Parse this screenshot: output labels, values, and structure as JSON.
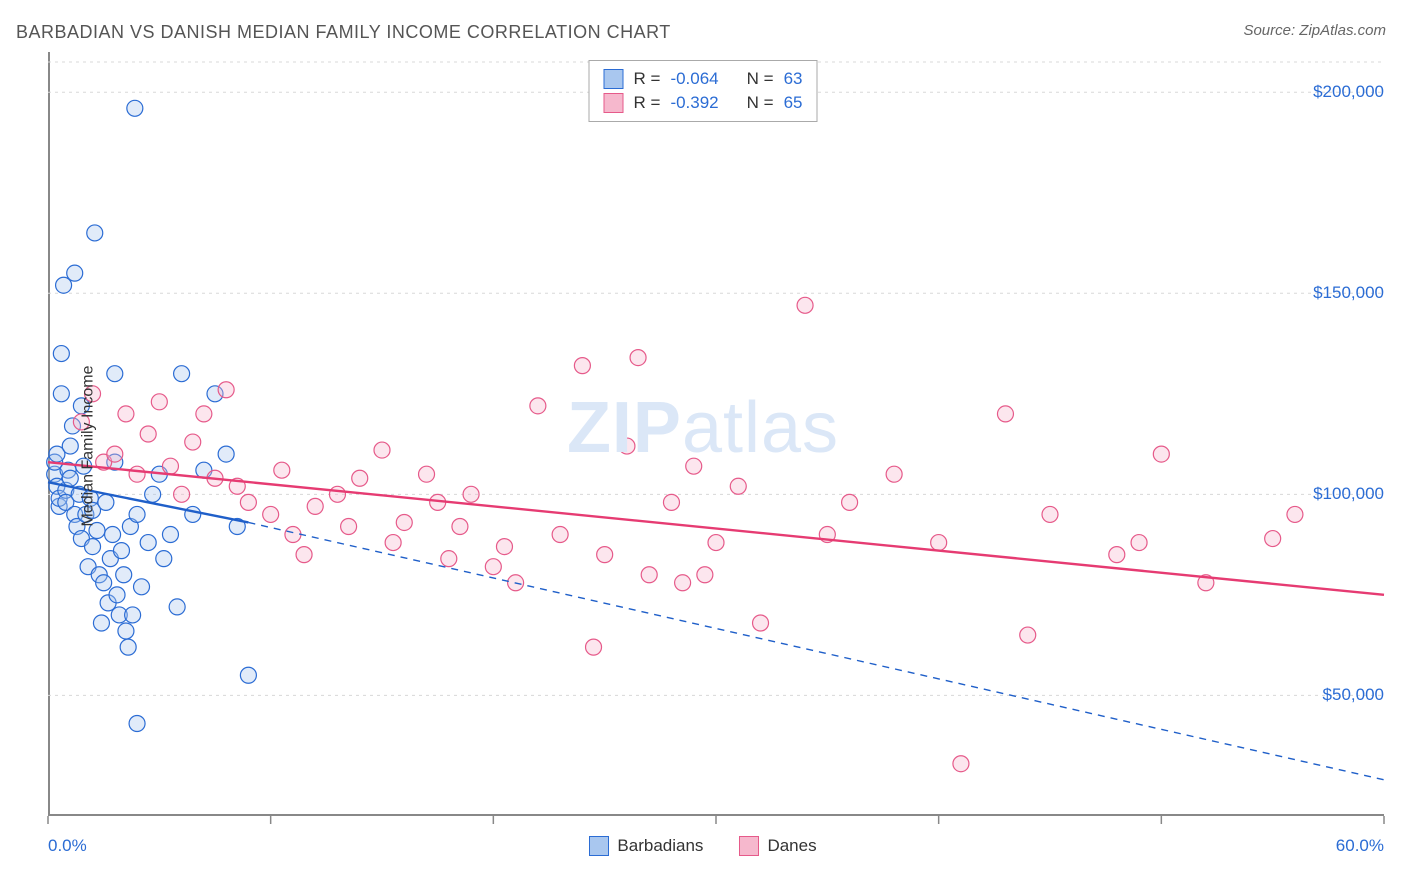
{
  "title": "BARBADIAN VS DANISH MEDIAN FAMILY INCOME CORRELATION CHART",
  "source": "Source: ZipAtlas.com",
  "watermark_bold": "ZIP",
  "watermark_rest": "atlas",
  "chart": {
    "type": "scatter",
    "ylabel": "Median Family Income",
    "xlim": [
      0,
      60
    ],
    "ylim": [
      20000,
      210000
    ],
    "xtick_positions": [
      0,
      10,
      20,
      30,
      40,
      50,
      60
    ],
    "xtick_labels_shown": {
      "first": "0.0%",
      "last": "60.0%"
    },
    "ytick_positions": [
      50000,
      100000,
      150000,
      200000
    ],
    "ytick_labels": [
      "$50,000",
      "$100,000",
      "$150,000",
      "$200,000"
    ],
    "grid_color": "#d8d8d8",
    "grid_dash": "3,4",
    "axis_color": "#888888",
    "background_color": "#ffffff",
    "tick_label_color": "#2b6cd4",
    "marker_radius": 8,
    "marker_stroke_width": 1.2,
    "marker_fill_opacity": 0.35,
    "trend_line_width": 2.4,
    "series": [
      {
        "name": "Barbadians",
        "color_stroke": "#2b6cd4",
        "color_fill": "#a9c7ef",
        "trend_color": "#1f5fc9",
        "trend_start": [
          0,
          103000
        ],
        "trend_end_solid": [
          9,
          93000
        ],
        "trend_end_dashed": [
          60,
          29000
        ],
        "R": "-0.064",
        "N": "63",
        "points": [
          [
            0.3,
            105000
          ],
          [
            0.3,
            108000
          ],
          [
            0.4,
            102000
          ],
          [
            0.4,
            110000
          ],
          [
            0.5,
            97000
          ],
          [
            0.5,
            99000
          ],
          [
            0.6,
            135000
          ],
          [
            0.6,
            125000
          ],
          [
            0.7,
            152000
          ],
          [
            0.8,
            101000
          ],
          [
            0.8,
            98000
          ],
          [
            0.9,
            106000
          ],
          [
            1.0,
            104000
          ],
          [
            1.0,
            112000
          ],
          [
            1.1,
            117000
          ],
          [
            1.2,
            155000
          ],
          [
            1.2,
            95000
          ],
          [
            1.3,
            92000
          ],
          [
            1.4,
            100000
          ],
          [
            1.5,
            89000
          ],
          [
            1.5,
            122000
          ],
          [
            1.6,
            107000
          ],
          [
            1.7,
            95000
          ],
          [
            1.8,
            82000
          ],
          [
            1.9,
            99000
          ],
          [
            2.0,
            87000
          ],
          [
            2.0,
            96000
          ],
          [
            2.1,
            165000
          ],
          [
            2.2,
            91000
          ],
          [
            2.3,
            80000
          ],
          [
            2.4,
            68000
          ],
          [
            2.5,
            78000
          ],
          [
            2.6,
            98000
          ],
          [
            2.7,
            73000
          ],
          [
            2.8,
            84000
          ],
          [
            2.9,
            90000
          ],
          [
            3.0,
            108000
          ],
          [
            3.0,
            130000
          ],
          [
            3.1,
            75000
          ],
          [
            3.2,
            70000
          ],
          [
            3.3,
            86000
          ],
          [
            3.4,
            80000
          ],
          [
            3.5,
            66000
          ],
          [
            3.6,
            62000
          ],
          [
            3.7,
            92000
          ],
          [
            3.8,
            70000
          ],
          [
            3.9,
            196000
          ],
          [
            4.0,
            95000
          ],
          [
            4.0,
            43000
          ],
          [
            4.2,
            77000
          ],
          [
            4.5,
            88000
          ],
          [
            4.7,
            100000
          ],
          [
            5.0,
            105000
          ],
          [
            5.2,
            84000
          ],
          [
            5.5,
            90000
          ],
          [
            5.8,
            72000
          ],
          [
            6.0,
            130000
          ],
          [
            6.5,
            95000
          ],
          [
            7.0,
            106000
          ],
          [
            7.5,
            125000
          ],
          [
            8.0,
            110000
          ],
          [
            8.5,
            92000
          ],
          [
            9.0,
            55000
          ]
        ]
      },
      {
        "name": "Danes",
        "color_stroke": "#e65a8a",
        "color_fill": "#f6b8cd",
        "trend_color": "#e63b72",
        "trend_start": [
          0,
          108000
        ],
        "trend_end_solid": [
          60,
          75000
        ],
        "trend_end_dashed": null,
        "R": "-0.392",
        "N": "65",
        "points": [
          [
            1.5,
            118000
          ],
          [
            2.0,
            125000
          ],
          [
            2.5,
            108000
          ],
          [
            3.0,
            110000
          ],
          [
            3.5,
            120000
          ],
          [
            4.0,
            105000
          ],
          [
            4.5,
            115000
          ],
          [
            5.0,
            123000
          ],
          [
            5.5,
            107000
          ],
          [
            6.0,
            100000
          ],
          [
            6.5,
            113000
          ],
          [
            7.0,
            120000
          ],
          [
            7.5,
            104000
          ],
          [
            8.0,
            126000
          ],
          [
            8.5,
            102000
          ],
          [
            9.0,
            98000
          ],
          [
            10.0,
            95000
          ],
          [
            10.5,
            106000
          ],
          [
            11.0,
            90000
          ],
          [
            11.5,
            85000
          ],
          [
            12.0,
            97000
          ],
          [
            13.0,
            100000
          ],
          [
            13.5,
            92000
          ],
          [
            14.0,
            104000
          ],
          [
            15.0,
            111000
          ],
          [
            15.5,
            88000
          ],
          [
            16.0,
            93000
          ],
          [
            17.0,
            105000
          ],
          [
            17.5,
            98000
          ],
          [
            18.0,
            84000
          ],
          [
            18.5,
            92000
          ],
          [
            19.0,
            100000
          ],
          [
            20.0,
            82000
          ],
          [
            20.5,
            87000
          ],
          [
            21.0,
            78000
          ],
          [
            22.0,
            122000
          ],
          [
            23.0,
            90000
          ],
          [
            24.0,
            132000
          ],
          [
            24.5,
            62000
          ],
          [
            25.0,
            85000
          ],
          [
            26.0,
            112000
          ],
          [
            26.5,
            134000
          ],
          [
            27.0,
            80000
          ],
          [
            28.0,
            98000
          ],
          [
            28.5,
            78000
          ],
          [
            29.0,
            107000
          ],
          [
            29.5,
            80000
          ],
          [
            30.0,
            88000
          ],
          [
            31.0,
            102000
          ],
          [
            32.0,
            68000
          ],
          [
            34.0,
            147000
          ],
          [
            35.0,
            90000
          ],
          [
            36.0,
            98000
          ],
          [
            38.0,
            105000
          ],
          [
            40.0,
            88000
          ],
          [
            41.0,
            33000
          ],
          [
            43.0,
            120000
          ],
          [
            44.0,
            65000
          ],
          [
            45.0,
            95000
          ],
          [
            48.0,
            85000
          ],
          [
            50.0,
            110000
          ],
          [
            52.0,
            78000
          ],
          [
            55.0,
            89000
          ],
          [
            56.0,
            95000
          ],
          [
            49.0,
            88000
          ]
        ]
      }
    ]
  },
  "legend_top": {
    "r_label": "R =",
    "n_label": "N ="
  },
  "legend_bottom": {
    "items": [
      "Barbadians",
      "Danes"
    ]
  }
}
